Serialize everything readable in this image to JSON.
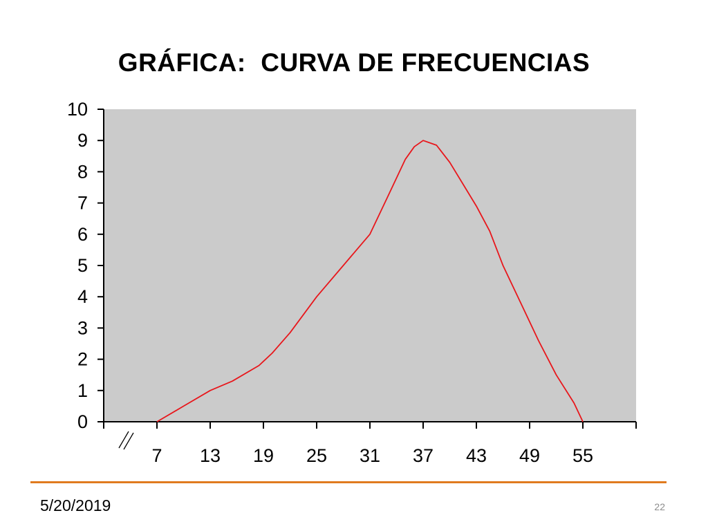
{
  "slide": {
    "title": "GRÁFICA:  CURVA DE FRECUENCIAS",
    "date": "5/20/2019",
    "page_number": "22"
  },
  "colors": {
    "plot_background": "#CBCBCB",
    "curve": "#E8161B",
    "footer_line": "#E07B1F",
    "axis": "#000000"
  },
  "chart_data": {
    "type": "line",
    "title": "GRÁFICA:  CURVA DE FRECUENCIAS",
    "xlabel": "",
    "ylabel": "",
    "x_tick_labels": [
      "7",
      "13",
      "19",
      "25",
      "31",
      "37",
      "43",
      "49",
      "55"
    ],
    "y_tick_labels": [
      "0",
      "1",
      "2",
      "3",
      "4",
      "5",
      "6",
      "7",
      "8",
      "9",
      "10"
    ],
    "xlim": [
      1,
      61
    ],
    "ylim": [
      0,
      10
    ],
    "axis_break": "x",
    "grid": false,
    "series": [
      {
        "x": [
          7,
          10,
          13,
          15.5,
          18.5,
          20,
          22,
          25,
          28,
          31,
          33,
          35,
          36,
          37,
          38.5,
          40,
          41.5,
          43,
          44.5,
          46,
          48,
          50,
          52,
          54,
          55
        ],
        "y": [
          0,
          0.5,
          1.0,
          1.3,
          1.8,
          2.2,
          2.85,
          4.0,
          5.0,
          6.0,
          7.2,
          8.4,
          8.8,
          9.0,
          8.85,
          8.3,
          7.6,
          6.9,
          6.1,
          5.0,
          3.8,
          2.6,
          1.5,
          0.6,
          0
        ]
      }
    ]
  }
}
